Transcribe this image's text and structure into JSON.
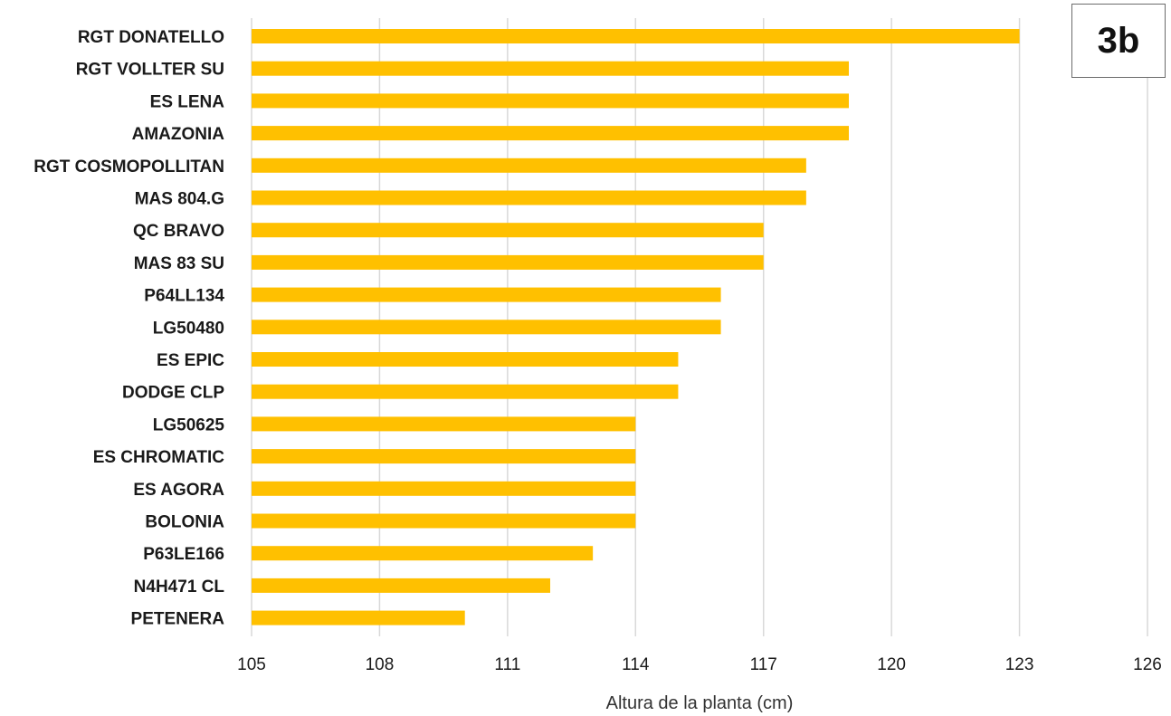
{
  "colors": {
    "bar": "#FFC000",
    "grid": "#d9d9d9"
  },
  "panel_label": "3b",
  "chart_data": {
    "type": "bar",
    "orientation": "horizontal",
    "title": "",
    "xlabel": "Altura de la planta (cm)",
    "ylabel": "",
    "xlim": [
      105,
      126
    ],
    "xticks": [
      105,
      108,
      111,
      114,
      117,
      120,
      123,
      126
    ],
    "grid": "vertical",
    "categories": [
      "RGT DONATELLO",
      "RGT VOLLTER SU",
      "ES LENA",
      "AMAZONIA",
      "RGT COSMOPOLLITAN",
      "MAS 804.G",
      "QC BRAVO",
      "MAS 83 SU",
      "P64LL134",
      "LG50480",
      "ES EPIC",
      "DODGE CLP",
      "LG50625",
      "ES CHROMATIC",
      "ES AGORA",
      "BOLONIA",
      "P63LE166",
      "N4H471 CL",
      "PETENERA"
    ],
    "values": [
      123,
      119,
      119,
      119,
      118,
      118,
      117,
      117,
      116,
      116,
      115,
      115,
      114,
      114,
      114,
      114,
      113,
      112,
      110
    ]
  }
}
